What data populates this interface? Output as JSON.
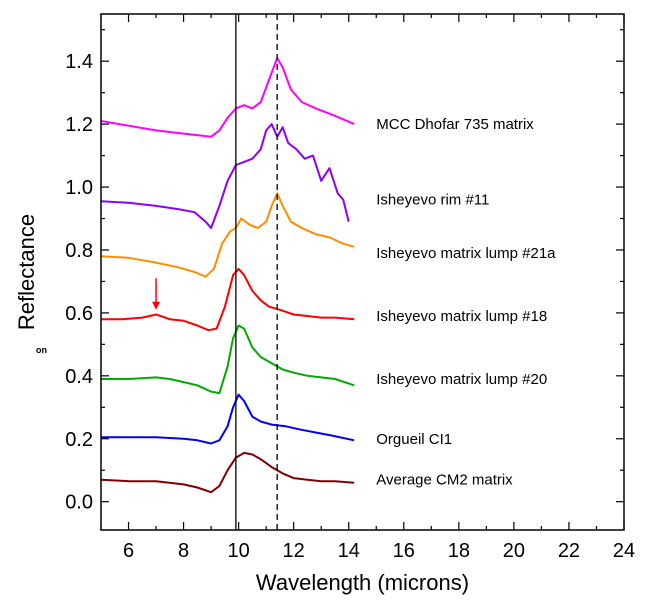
{
  "chart_data": {
    "type": "line",
    "xlabel": "Wavelength (microns)",
    "ylabel": "Reflectance",
    "xlim": [
      5,
      24
    ],
    "ylim": [
      -0.09,
      1.55
    ],
    "xticks": [
      6,
      8,
      10,
      12,
      14,
      16,
      18,
      20,
      22,
      24
    ],
    "xtick_labels": [
      "6",
      "8",
      "10",
      "12",
      "14",
      "16",
      "18",
      "20",
      "22",
      "24"
    ],
    "yticks": [
      0.0,
      0.2,
      0.4,
      0.6,
      0.8,
      1.0,
      1.2,
      1.4
    ],
    "ytick_labels": [
      "0.0",
      "0.2",
      "0.4",
      "0.6",
      "0.8",
      "1.0",
      "1.2",
      "1.4"
    ],
    "reference_lines": [
      {
        "x": 9.9,
        "style": "solid"
      },
      {
        "x": 11.4,
        "style": "dashed"
      }
    ],
    "marker_arrow": {
      "x": 7.0,
      "y_from": 0.71,
      "y_to": 0.61,
      "color": "#ff0000"
    },
    "stray_text": "on",
    "series": [
      {
        "name": "MCC Dhofar 735 matrix",
        "color": "#ff00ff",
        "x": [
          5.0,
          6.0,
          7.0,
          8.0,
          8.5,
          9.0,
          9.3,
          9.6,
          9.9,
          10.2,
          10.5,
          10.8,
          11.1,
          11.4,
          11.6,
          11.9,
          12.3,
          12.8,
          13.4,
          14.2
        ],
        "y": [
          1.21,
          1.195,
          1.18,
          1.17,
          1.165,
          1.16,
          1.18,
          1.22,
          1.25,
          1.26,
          1.25,
          1.27,
          1.34,
          1.41,
          1.38,
          1.31,
          1.27,
          1.25,
          1.23,
          1.2
        ]
      },
      {
        "name": "Isheyevo rim #11",
        "color": "#8b00ff",
        "x": [
          5.0,
          6.0,
          7.0,
          7.8,
          8.4,
          8.8,
          9.0,
          9.3,
          9.6,
          9.9,
          10.2,
          10.5,
          10.8,
          11.0,
          11.2,
          11.4,
          11.6,
          11.8,
          12.1,
          12.4,
          12.7,
          13.0,
          13.3,
          13.6,
          13.8,
          14.0
        ],
        "y": [
          0.955,
          0.95,
          0.94,
          0.93,
          0.92,
          0.89,
          0.87,
          0.94,
          1.02,
          1.07,
          1.08,
          1.09,
          1.12,
          1.18,
          1.2,
          1.16,
          1.19,
          1.14,
          1.12,
          1.09,
          1.1,
          1.02,
          1.06,
          0.98,
          0.96,
          0.89
        ]
      },
      {
        "name": "Isheyevo matrix lump #21a",
        "color": "#ff8c00",
        "x": [
          5.0,
          6.0,
          7.0,
          7.8,
          8.4,
          8.8,
          9.1,
          9.4,
          9.7,
          9.9,
          10.1,
          10.4,
          10.7,
          11.0,
          11.2,
          11.4,
          11.6,
          11.9,
          12.3,
          12.8,
          13.3,
          13.8,
          14.2
        ],
        "y": [
          0.78,
          0.775,
          0.76,
          0.745,
          0.73,
          0.715,
          0.74,
          0.82,
          0.86,
          0.87,
          0.9,
          0.88,
          0.87,
          0.89,
          0.94,
          0.98,
          0.94,
          0.89,
          0.87,
          0.85,
          0.84,
          0.82,
          0.81
        ]
      },
      {
        "name": "Isheyevo matrix lump #18",
        "color": "#ff0000",
        "x": [
          5.0,
          5.8,
          6.5,
          7.0,
          7.5,
          8.0,
          8.5,
          8.9,
          9.2,
          9.5,
          9.8,
          10.0,
          10.2,
          10.5,
          10.8,
          11.1,
          11.5,
          12.0,
          12.5,
          13.0,
          13.5,
          14.2
        ],
        "y": [
          0.58,
          0.58,
          0.585,
          0.595,
          0.58,
          0.575,
          0.56,
          0.545,
          0.55,
          0.62,
          0.72,
          0.74,
          0.72,
          0.67,
          0.64,
          0.62,
          0.61,
          0.595,
          0.59,
          0.585,
          0.585,
          0.58
        ]
      },
      {
        "name": "Isheyevo matrix lump #20",
        "color": "#00aa00",
        "x": [
          5.0,
          6.0,
          7.0,
          7.5,
          8.0,
          8.5,
          9.0,
          9.3,
          9.6,
          9.8,
          10.0,
          10.2,
          10.5,
          10.8,
          11.2,
          11.6,
          12.0,
          12.5,
          13.0,
          13.5,
          14.2
        ],
        "y": [
          0.39,
          0.39,
          0.395,
          0.39,
          0.38,
          0.37,
          0.35,
          0.345,
          0.43,
          0.52,
          0.56,
          0.55,
          0.49,
          0.46,
          0.44,
          0.42,
          0.41,
          0.4,
          0.395,
          0.39,
          0.37
        ]
      },
      {
        "name": "Orgueil CI1",
        "color": "#0000ff",
        "x": [
          5.0,
          6.0,
          7.0,
          8.0,
          8.5,
          9.0,
          9.3,
          9.6,
          9.8,
          10.0,
          10.2,
          10.5,
          10.8,
          11.2,
          11.7,
          12.2,
          12.8,
          13.4,
          14.2
        ],
        "y": [
          0.205,
          0.205,
          0.205,
          0.2,
          0.195,
          0.185,
          0.195,
          0.24,
          0.3,
          0.34,
          0.32,
          0.27,
          0.255,
          0.245,
          0.24,
          0.23,
          0.22,
          0.21,
          0.195
        ]
      },
      {
        "name": "Average  CM2 matrix",
        "color": "#800000",
        "x": [
          5.0,
          6.0,
          7.0,
          8.0,
          8.5,
          9.0,
          9.3,
          9.6,
          9.9,
          10.2,
          10.5,
          10.8,
          11.2,
          11.6,
          12.0,
          12.5,
          13.0,
          13.5,
          14.2
        ],
        "y": [
          0.07,
          0.065,
          0.065,
          0.055,
          0.045,
          0.03,
          0.05,
          0.1,
          0.14,
          0.155,
          0.15,
          0.135,
          0.11,
          0.09,
          0.075,
          0.07,
          0.065,
          0.065,
          0.06
        ]
      }
    ]
  }
}
